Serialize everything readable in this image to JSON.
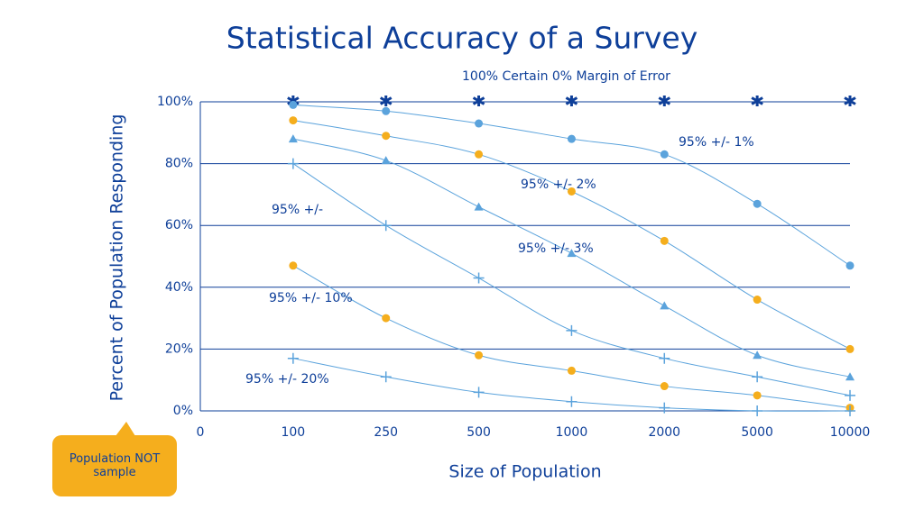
{
  "chart_data": {
    "type": "line",
    "title": "Statistical Accuracy of a Survey",
    "x_label": "Size of Population",
    "y_label": "Percent of Population Responding",
    "callout": "Population NOT sample",
    "categories": [
      "0",
      "100",
      "250",
      "500",
      "1000",
      "2000",
      "5000",
      "10000"
    ],
    "ylim": [
      0,
      100
    ],
    "yticks": [
      {
        "value": 0,
        "label": "0%"
      },
      {
        "value": 20,
        "label": "20%"
      },
      {
        "value": 40,
        "label": "40%"
      },
      {
        "value": 60,
        "label": "60%"
      },
      {
        "value": 80,
        "label": "80%"
      },
      {
        "value": 100,
        "label": "100%"
      }
    ],
    "grid": true,
    "series": [
      {
        "name": "100% Certain 0% Margin of Error",
        "color": "#0e3f99",
        "marker": "star",
        "line": false,
        "values": [
          null,
          100,
          100,
          100,
          100,
          100,
          100,
          100
        ]
      },
      {
        "name": "95% +/- 1%",
        "color": "#5ba3dc",
        "marker": "circle",
        "line": true,
        "values": [
          null,
          99,
          97,
          93,
          88,
          83,
          67,
          47
        ]
      },
      {
        "name": "95% +/- 2%",
        "color": "#f5ae1d",
        "marker": "circle",
        "line": true,
        "values": [
          null,
          94,
          89,
          83,
          71,
          55,
          36,
          20
        ]
      },
      {
        "name": "95% +/- 3%",
        "color": "#5ba3dc",
        "marker": "triangle",
        "line": true,
        "values": [
          null,
          88,
          81,
          66,
          51,
          34,
          18,
          11
        ]
      },
      {
        "name": "95% +/-",
        "color": "#5ba3dc",
        "marker": "plus",
        "line": true,
        "values": [
          null,
          80,
          60,
          43,
          26,
          17,
          11,
          5
        ]
      },
      {
        "name": "95% +/- 10%",
        "color": "#f5ae1d",
        "marker": "circle",
        "line": true,
        "values": [
          null,
          47,
          30,
          18,
          13,
          8,
          5,
          1
        ]
      },
      {
        "name": "95% +/- 20%",
        "color": "#5ba3dc",
        "marker": "plus",
        "line": true,
        "values": [
          null,
          17,
          11,
          6,
          3,
          1,
          0,
          0
        ]
      }
    ]
  }
}
